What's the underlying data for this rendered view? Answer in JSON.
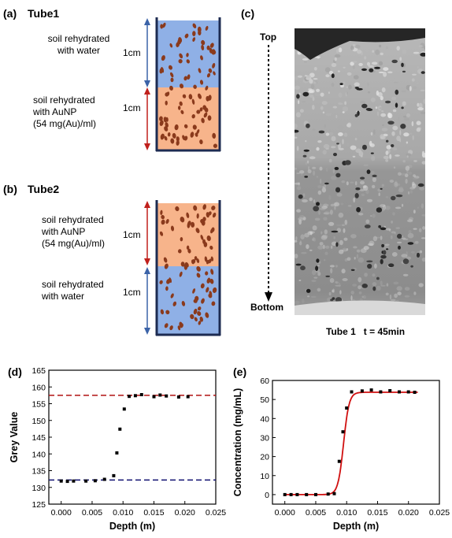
{
  "panel_a": {
    "label": "(a)",
    "title": "Tube1",
    "top_text": [
      "soil rehydrated",
      "with water"
    ],
    "bottom_text": [
      "soil rehydrated",
      "with AuNP",
      "(54 mg(Au)/ml)"
    ],
    "top_length": "1cm",
    "bottom_length": "1cm"
  },
  "panel_b": {
    "label": "(b)",
    "title": "Tube2",
    "top_text": [
      "soil rehydrated",
      "with AuNP",
      "(54 mg(Au)/ml)"
    ],
    "bottom_text": [
      "soil rehydrated",
      "with water"
    ],
    "top_length": "1cm",
    "bottom_length": "1cm"
  },
  "panel_c": {
    "label": "(c)",
    "top_label": "Top",
    "bottom_label": "Bottom",
    "caption": "Tube 1   t = 45min"
  },
  "colors": {
    "water": "#8fb0e6",
    "aunp": "#f7b48b",
    "particle": "#8a3a1c",
    "tube_wall": "#1d2b52",
    "arrow_blue": "#3b63a8",
    "arrow_red": "#c0201c",
    "ref_red": "#b01010",
    "ref_blue": "#101070",
    "fit_red": "#d01010"
  },
  "chart_data": [
    {
      "panel": "(d)",
      "type": "scatter",
      "xlabel": "Depth (m)",
      "ylabel": "Grey Value",
      "xlim": [
        -0.002,
        0.025
      ],
      "ylim": [
        125,
        165
      ],
      "xticks": [
        "0.000",
        "0.005",
        "0.010",
        "0.015",
        "0.020",
        "0.025"
      ],
      "yticks": [
        "125",
        "130",
        "135",
        "140",
        "145",
        "150",
        "155",
        "160",
        "165"
      ],
      "reference_lines": [
        157.5,
        132.2
      ],
      "points": [
        [
          0.0,
          131.9
        ],
        [
          0.001,
          131.8
        ],
        [
          0.002,
          131.9
        ],
        [
          0.004,
          131.9
        ],
        [
          0.0055,
          132.0
        ],
        [
          0.007,
          132.4
        ],
        [
          0.0085,
          133.5
        ],
        [
          0.009,
          140.3
        ],
        [
          0.0095,
          147.4
        ],
        [
          0.0102,
          153.4
        ],
        [
          0.011,
          157.2
        ],
        [
          0.012,
          157.4
        ],
        [
          0.013,
          157.7
        ],
        [
          0.015,
          157.1
        ],
        [
          0.016,
          157.6
        ],
        [
          0.017,
          157.3
        ],
        [
          0.019,
          157.0
        ],
        [
          0.0205,
          157.1
        ]
      ]
    },
    {
      "panel": "(e)",
      "type": "scatter",
      "xlabel": "Depth (m)",
      "ylabel": "Concentration (mg/mL)",
      "xlim": [
        -0.002,
        0.025
      ],
      "ylim": [
        -5,
        60
      ],
      "xticks": [
        "0.000",
        "0.005",
        "0.010",
        "0.015",
        "0.020",
        "0.025"
      ],
      "yticks": [
        "0",
        "10",
        "20",
        "30",
        "40",
        "50",
        "60"
      ],
      "points": [
        [
          0.0,
          0.0
        ],
        [
          0.001,
          0.0
        ],
        [
          0.002,
          0.0
        ],
        [
          0.0035,
          0.0
        ],
        [
          0.005,
          0.0
        ],
        [
          0.007,
          0.3
        ],
        [
          0.008,
          0.5
        ],
        [
          0.0088,
          17.5
        ],
        [
          0.0094,
          33.0
        ],
        [
          0.01,
          45.5
        ],
        [
          0.0108,
          54.0
        ],
        [
          0.0125,
          54.5
        ],
        [
          0.014,
          55.0
        ],
        [
          0.0155,
          54.0
        ],
        [
          0.017,
          54.6
        ],
        [
          0.0185,
          54.0
        ],
        [
          0.02,
          54.0
        ],
        [
          0.021,
          53.8
        ]
      ],
      "fit": {
        "lower": 0.0,
        "upper": 53.8,
        "midpoint": 0.0095,
        "width": 0.00045
      }
    }
  ]
}
